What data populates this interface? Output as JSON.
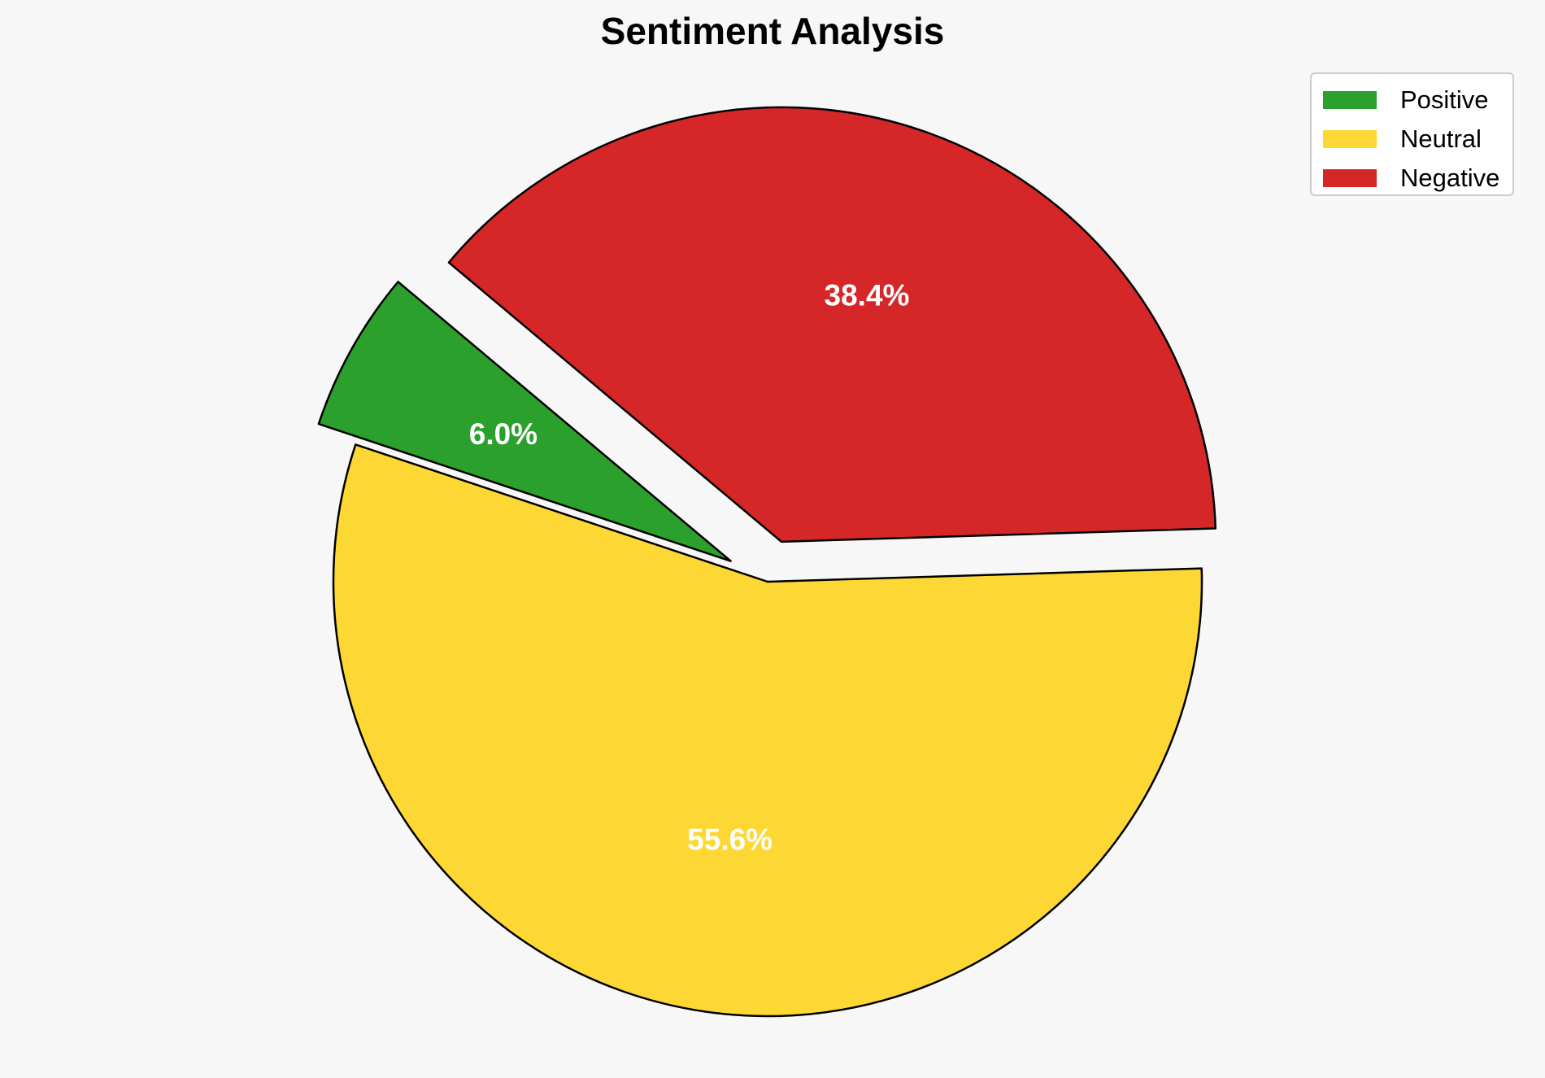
{
  "chart_data": {
    "type": "pie",
    "title": "Sentiment Analysis",
    "categories": [
      "Positive",
      "Neutral",
      "Negative"
    ],
    "values": [
      6.0,
      55.6,
      38.4
    ],
    "value_labels": [
      "6.0%",
      "55.6%",
      "38.4%"
    ],
    "colors": [
      "#2ca02c",
      "#fdd835",
      "#d62728"
    ],
    "exploded": [
      true,
      false,
      true
    ],
    "slice_edge_color": "#000000",
    "label_color": "#ffffff",
    "legend_position": "top-right",
    "background_color": "#f7f7f7"
  }
}
